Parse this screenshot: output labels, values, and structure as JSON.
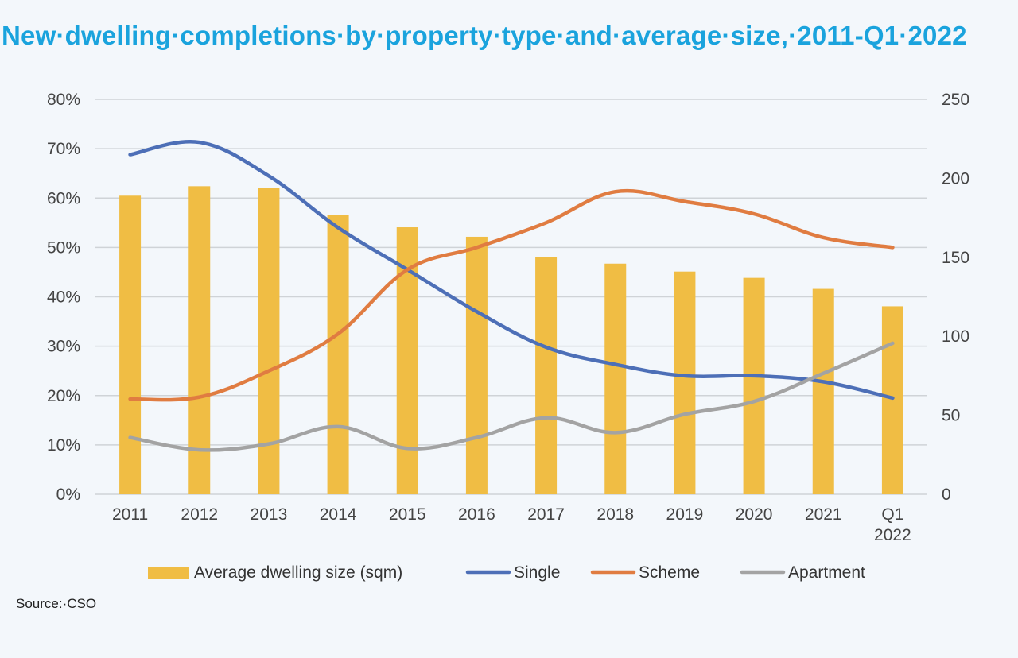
{
  "title": "New·dwelling·completions·by·property·type·and·average·size,·2011-Q1·2022",
  "source": "Source:·CSO",
  "chart_data": {
    "type": "bar",
    "categories": [
      "2011",
      "2012",
      "2013",
      "2014",
      "2015",
      "2016",
      "2017",
      "2018",
      "2019",
      "2020",
      "2021",
      "Q1 2022"
    ],
    "category_lines": [
      [
        "2011"
      ],
      [
        "2012"
      ],
      [
        "2013"
      ],
      [
        "2014"
      ],
      [
        "2015"
      ],
      [
        "2016"
      ],
      [
        "2017"
      ],
      [
        "2018"
      ],
      [
        "2019"
      ],
      [
        "2020"
      ],
      [
        "2021"
      ],
      [
        "Q1",
        "2022"
      ]
    ],
    "y_left": {
      "min": 0,
      "max": 80,
      "step": 10,
      "tick_labels": [
        "0%",
        "10%",
        "20%",
        "30%",
        "40%",
        "50%",
        "60%",
        "70%",
        "80%"
      ]
    },
    "y_right": {
      "min": 0,
      "max": 250,
      "step": 50,
      "tick_labels": [
        "0",
        "50",
        "100",
        "150",
        "200",
        "250"
      ]
    },
    "grid": true,
    "legend_position": "bottom",
    "series": [
      {
        "name": "Average dwelling size (sqm)",
        "type": "bar",
        "axis": "right",
        "color": "#f0bd44",
        "values": [
          189,
          195,
          194,
          177,
          169,
          163,
          150,
          146,
          141,
          137,
          130,
          119
        ]
      },
      {
        "name": "Single",
        "type": "line",
        "axis": "left",
        "color": "#4d6fb7",
        "values": [
          68.8,
          71.3,
          64.5,
          54.0,
          45.5,
          37.0,
          29.8,
          26.3,
          24.0,
          24.0,
          22.8,
          19.5
        ]
      },
      {
        "name": "Scheme",
        "type": "line",
        "axis": "left",
        "color": "#e07c41",
        "values": [
          19.3,
          19.7,
          25.0,
          32.5,
          45.5,
          50.0,
          55.0,
          61.3,
          59.3,
          56.8,
          52.0,
          50.0
        ]
      },
      {
        "name": "Apartment",
        "type": "line",
        "axis": "left",
        "color": "#a3a3a3",
        "values": [
          11.5,
          9.0,
          10.2,
          13.7,
          9.3,
          11.5,
          15.5,
          12.5,
          16.2,
          18.8,
          24.5,
          30.6
        ]
      }
    ]
  }
}
